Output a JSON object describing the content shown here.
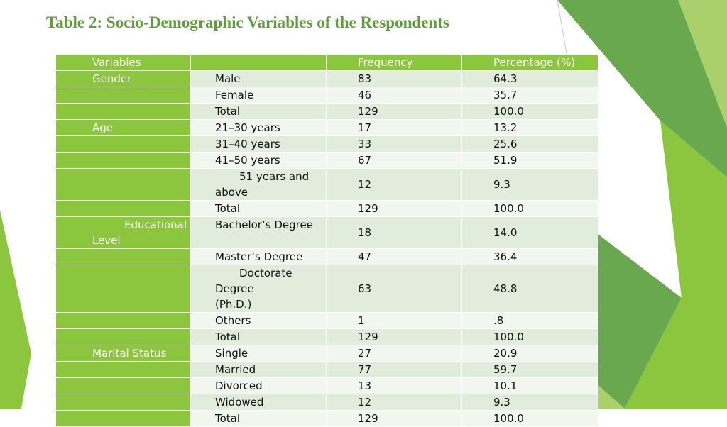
{
  "title": "Table 2: Socio-Demographic Variables of the Respondents",
  "colors": {
    "accent": "#8cc63e",
    "title": "#5e9e38",
    "row_odd": "#e2ecdc",
    "row_even": "#f1f6ef"
  },
  "table": {
    "headers": {
      "variables": "Variables",
      "category": "",
      "frequency": "Frequency",
      "percentage": "Percentage (%)"
    },
    "rows": [
      {
        "variable": "Gender",
        "category": "Male",
        "frequency": "83",
        "percentage": "64.3"
      },
      {
        "variable": "",
        "category": "Female",
        "frequency": "46",
        "percentage": "35.7"
      },
      {
        "variable": "",
        "category": "Total",
        "frequency": "129",
        "percentage": "100.0"
      },
      {
        "variable": "Age",
        "category": "21–30 years",
        "frequency": "17",
        "percentage": "13.2"
      },
      {
        "variable": "",
        "category": "31–40 years",
        "frequency": "33",
        "percentage": "25.6"
      },
      {
        "variable": "",
        "category": "41–50 years",
        "frequency": "67",
        "percentage": "51.9"
      },
      {
        "variable": "",
        "category_line1": "51 years and",
        "category_line2": "above",
        "frequency": "12",
        "percentage": "9.3"
      },
      {
        "variable": "",
        "category": "Total",
        "frequency": "129",
        "percentage": "100.0"
      },
      {
        "variable_line1": "Educational",
        "variable_line2": "Level",
        "category": "Bachelor’s Degree",
        "frequency": "18",
        "percentage": "14.0"
      },
      {
        "variable": "",
        "category": "Master’s Degree",
        "frequency": "47",
        "percentage": "36.4"
      },
      {
        "variable": "",
        "category_line1": "Doctorate Degree",
        "category_line2": "(Ph.D.)",
        "frequency": "63",
        "percentage": "48.8"
      },
      {
        "variable": "",
        "category": "Others",
        "frequency": "1",
        "percentage": ".8"
      },
      {
        "variable": "",
        "category": "Total",
        "frequency": "129",
        "percentage": "100.0"
      },
      {
        "variable": "Marital Status",
        "category": "Single",
        "frequency": "27",
        "percentage": "20.9"
      },
      {
        "variable": "",
        "category": "Married",
        "frequency": "77",
        "percentage": "59.7"
      },
      {
        "variable": "",
        "category": "Divorced",
        "frequency": "13",
        "percentage": "10.1"
      },
      {
        "variable": "",
        "category": "Widowed",
        "frequency": "12",
        "percentage": "9.3"
      },
      {
        "variable": "",
        "category": "Total",
        "frequency": "129",
        "percentage": "100.0"
      }
    ]
  }
}
